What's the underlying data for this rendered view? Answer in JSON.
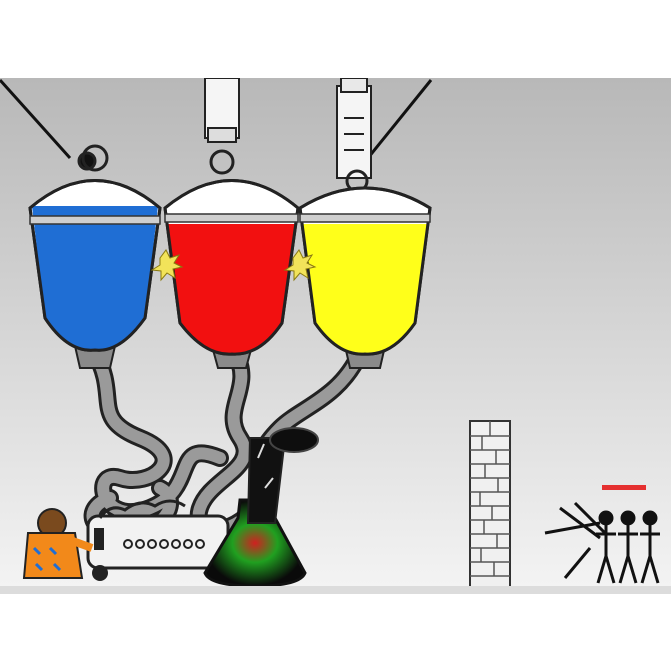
{
  "scene": {
    "palette": {
      "background_top": "#bdbdbd",
      "background_bottom": "#f2f2f2",
      "blue": "#1f6ed4",
      "red": "#f21010",
      "yellow": "#ffff1a",
      "hose": "#9a9a9a",
      "outline": "#1a1a1a",
      "health_bar": "#e53030",
      "spark": "#f2e35a",
      "flask_glow_green": "#20a020",
      "flask_glow_red": "#d02020"
    },
    "tanks": [
      {
        "name": "blue-tank",
        "color": "#1f6ed4",
        "fill_fraction": 0.82
      },
      {
        "name": "red-tank",
        "color": "#f21010",
        "fill_fraction": 0.82
      },
      {
        "name": "yellow-tank",
        "color": "#ffff1a",
        "fill_fraction": 0.85
      }
    ],
    "machine": {
      "dials": 7
    },
    "enemies": {
      "count": 3,
      "health_fraction": 1.0
    },
    "tower": {
      "bricks": 12
    }
  }
}
